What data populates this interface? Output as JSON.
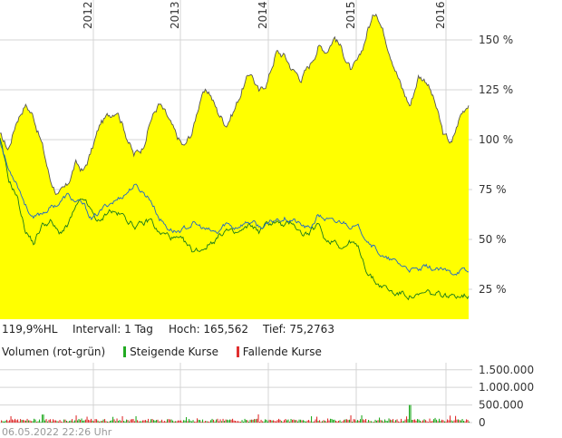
{
  "chart_data": [
    {
      "type": "area",
      "x_ticks": [
        "2012",
        "2013",
        "2014",
        "2015",
        "2016"
      ],
      "y_ticks": [
        "150 %",
        "125 %",
        "100 %",
        "75 %",
        "50 %",
        "25 %"
      ],
      "y_tick_values": [
        150,
        125,
        100,
        75,
        50,
        25
      ],
      "ylim": [
        10,
        170
      ],
      "grid": true,
      "colors": {
        "area_fill": "#ffff00",
        "area_line": "#555555",
        "blue": "#1f66c8",
        "green": "#1a7a1a"
      },
      "series": [
        {
          "kind": "area",
          "values": [
            102,
            95,
            110,
            118,
            112,
            98,
            80,
            72,
            76,
            88,
            84,
            95,
            108,
            112,
            116,
            104,
            92,
            96,
            110,
            118,
            111,
            102,
            96,
            104,
            122,
            124,
            114,
            108,
            115,
            126,
            134,
            123,
            130,
            144,
            142,
            135,
            131,
            137,
            147,
            145,
            152,
            144,
            134,
            140,
            156,
            165,
            152,
            140,
            126,
            117,
            132,
            130,
            118,
            102,
            98,
            112,
            119
          ]
        },
        {
          "kind": "line",
          "values": [
            100,
            85,
            79,
            68,
            60,
            63,
            66,
            68,
            72,
            69,
            67,
            60,
            64,
            68,
            70,
            73,
            77,
            74,
            70,
            61,
            56,
            54,
            55,
            58,
            56,
            54,
            53,
            58,
            56,
            58,
            59,
            56,
            57,
            60,
            61,
            60,
            57,
            55,
            62,
            60,
            58,
            59,
            57,
            55,
            50,
            45,
            40,
            39,
            37,
            35,
            34,
            36,
            35,
            34,
            33,
            35,
            33
          ]
        },
        {
          "kind": "line",
          "values": [
            100,
            80,
            72,
            55,
            48,
            57,
            59,
            53,
            56,
            65,
            70,
            63,
            58,
            65,
            63,
            61,
            57,
            57,
            60,
            53,
            52,
            50,
            48,
            44,
            45,
            48,
            51,
            55,
            52,
            54,
            57,
            54,
            58,
            59,
            56,
            59,
            53,
            53,
            57,
            49,
            50,
            46,
            49,
            44,
            33,
            28,
            26,
            23,
            23,
            22,
            21,
            23,
            22,
            22,
            21,
            23,
            22
          ]
        }
      ]
    },
    {
      "type": "bar",
      "y_ticks": [
        "1.500.000",
        "1.000.000",
        "500.000",
        "0"
      ],
      "y_tick_values": [
        1500000,
        1000000,
        500000,
        0
      ],
      "ylim": [
        0,
        1700000
      ],
      "colors": {
        "up": "#22aa22",
        "down": "#e03030"
      }
    }
  ],
  "info": {
    "current": "119,9%HL",
    "interval": "Intervall: 1 Tag",
    "high": "Hoch:  165,562",
    "low": "Tief: 75,2763"
  },
  "volume_legend": {
    "title": "Volumen (rot-grün)",
    "rising": "Steigende Kurse",
    "falling": "Fallende Kurse"
  },
  "timestamp": "06.05.2022 22:26 Uhr"
}
